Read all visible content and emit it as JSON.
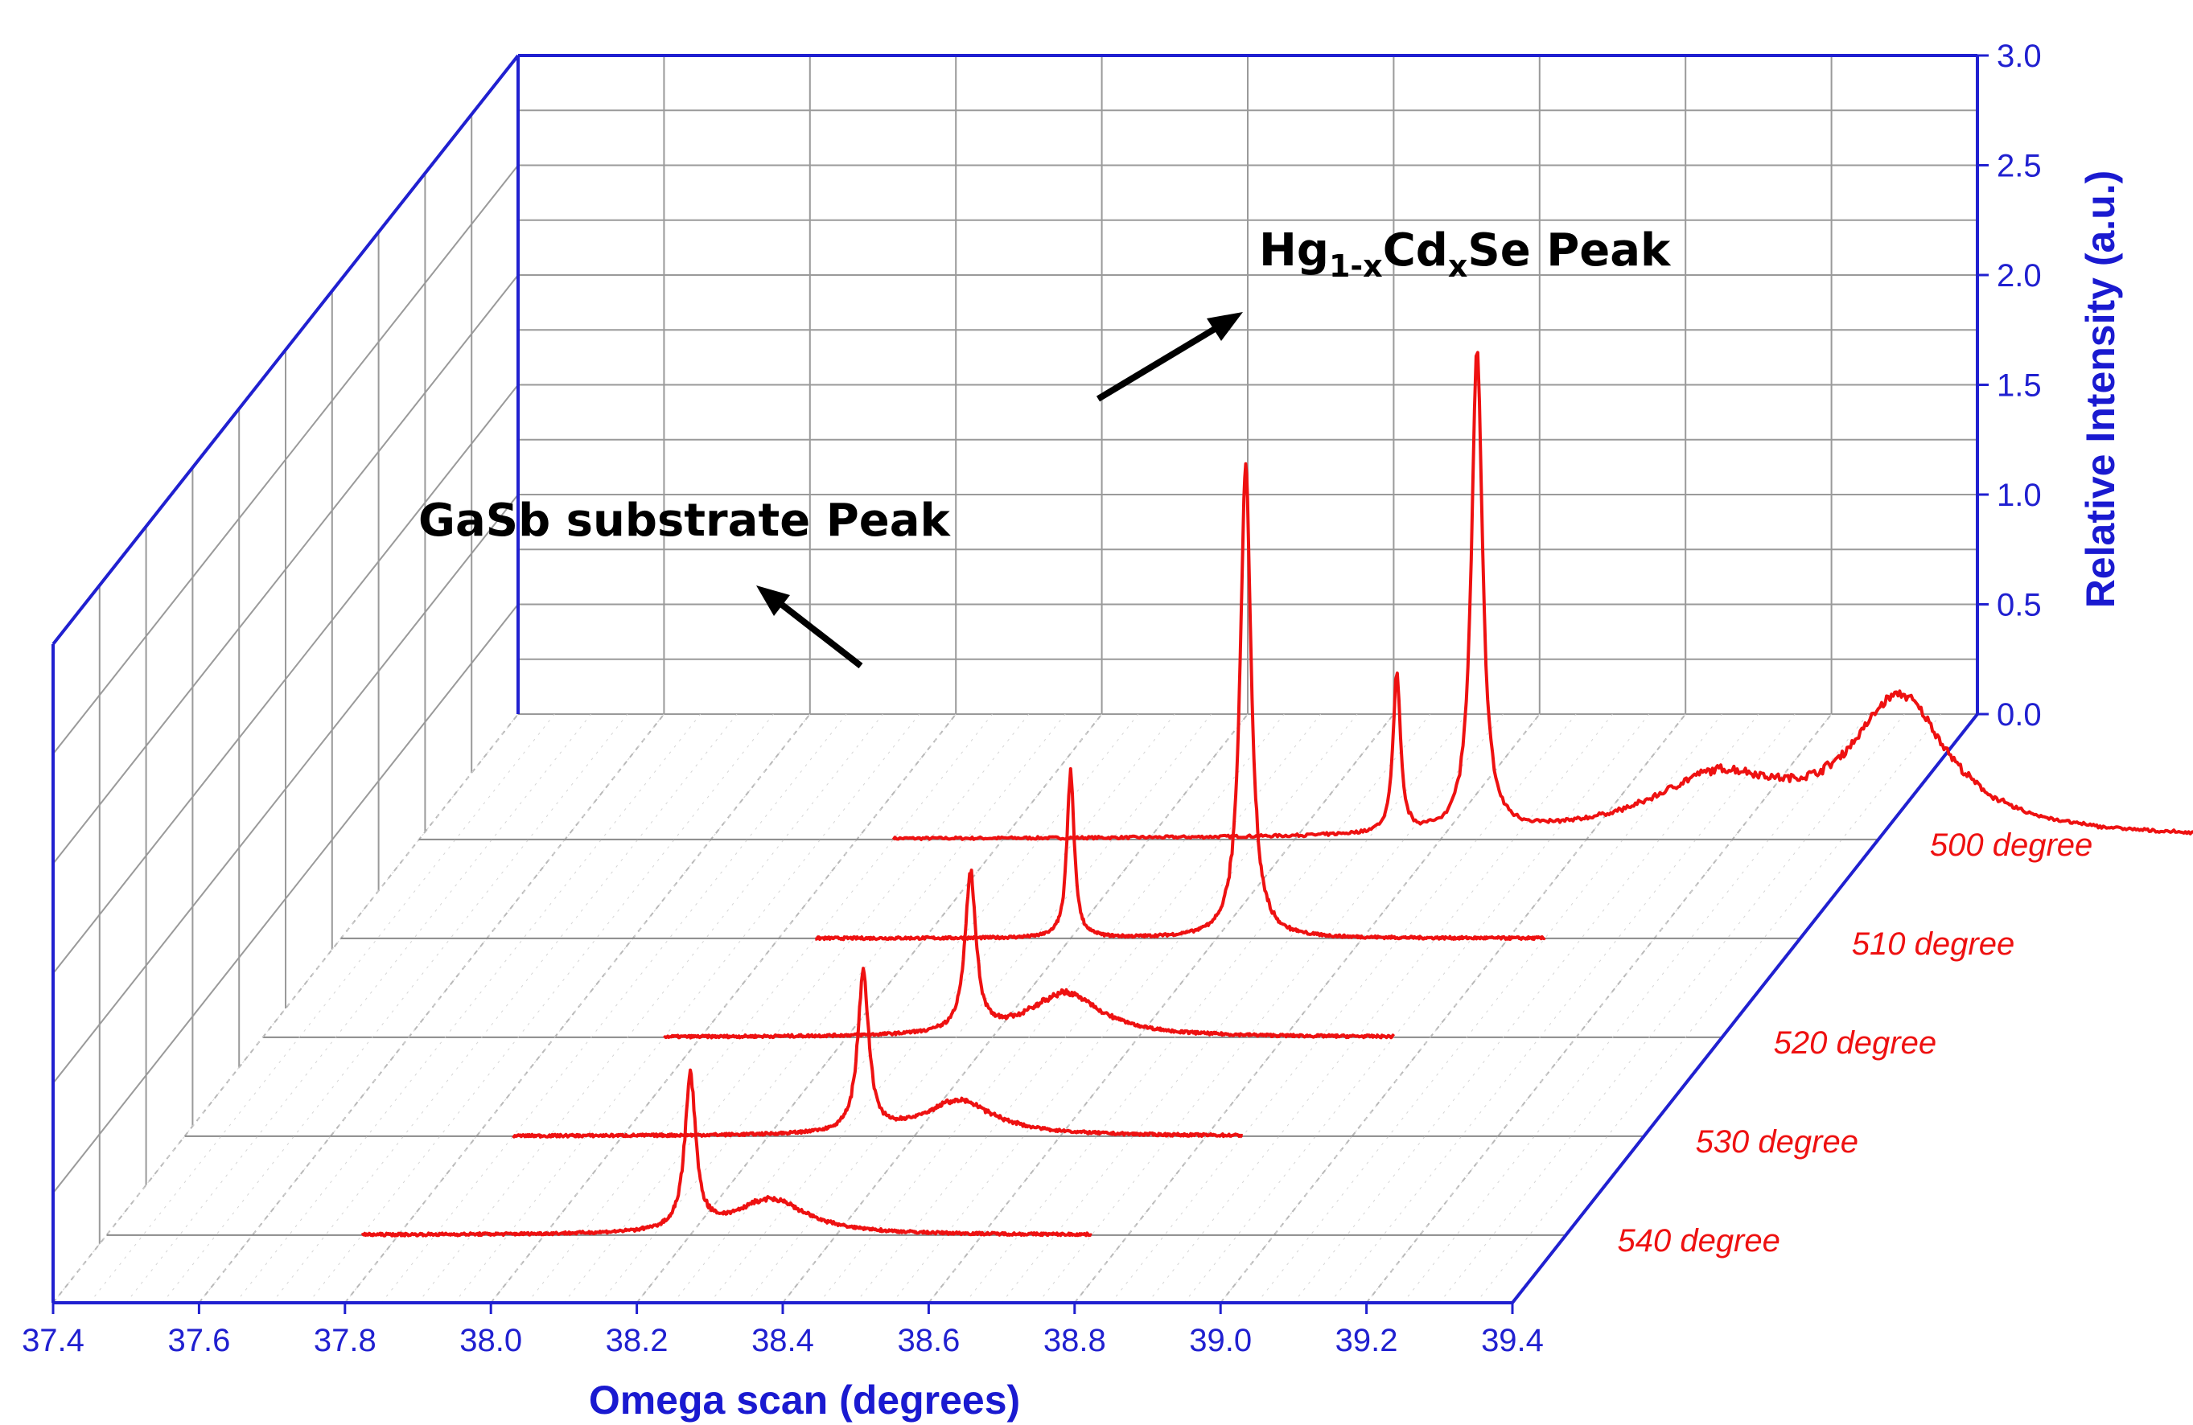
{
  "chart_data": {
    "type": "line",
    "style": "3d-waterfall",
    "xlabel": "Omega scan (degrees)",
    "zlabel": "Relative Intensity (a.u.)",
    "x_ticks": [
      "37.4",
      "37.6",
      "37.8",
      "38.0",
      "38.2",
      "38.4",
      "38.6",
      "38.8",
      "39.0",
      "39.2",
      "39.4"
    ],
    "z_ticks": [
      "0.0",
      "0.5",
      "1.0",
      "1.5",
      "2.0",
      "2.5",
      "3.0"
    ],
    "xlim": [
      37.4,
      39.4
    ],
    "zlim": [
      0,
      3.0
    ],
    "grid": true,
    "colors": {
      "axis": "#2020d0",
      "series": "#ee1111",
      "grid": "#9a9a9a",
      "annotation": "#000000"
    },
    "series": [
      {
        "name": "500 degree",
        "x_range": [
          38.05,
          39.85
        ],
        "peaks": [
          {
            "x": 38.74,
            "height": 0.72,
            "width": 0.006
          },
          {
            "x": 38.85,
            "height": 2.2,
            "width": 0.009
          },
          {
            "x": 39.18,
            "height": 0.26,
            "width": 0.11
          },
          {
            "x": 39.43,
            "height": 0.62,
            "width": 0.08
          }
        ]
      },
      {
        "name": "510 degree",
        "x_range": [
          38.05,
          39.05
        ],
        "peaks": [
          {
            "x": 38.4,
            "height": 0.75,
            "width": 0.006
          },
          {
            "x": 38.64,
            "height": 2.15,
            "width": 0.009
          }
        ]
      },
      {
        "name": "520 degree",
        "x_range": [
          37.95,
          38.95
        ],
        "peaks": [
          {
            "x": 38.37,
            "height": 0.72,
            "width": 0.009
          },
          {
            "x": 38.5,
            "height": 0.2,
            "width": 0.06
          }
        ]
      },
      {
        "name": "530 degree",
        "x_range": [
          37.85,
          38.85
        ],
        "peaks": [
          {
            "x": 38.33,
            "height": 0.72,
            "width": 0.009
          },
          {
            "x": 38.46,
            "height": 0.16,
            "width": 0.06
          }
        ]
      },
      {
        "name": "540 degree",
        "x_range": [
          37.75,
          38.75
        ],
        "peaks": [
          {
            "x": 38.2,
            "height": 0.7,
            "width": 0.009
          },
          {
            "x": 38.31,
            "height": 0.16,
            "width": 0.06
          }
        ]
      }
    ],
    "annotations": [
      {
        "id": "hgcdse",
        "parts": [
          "Hg",
          "1-x",
          "Cd",
          "x",
          "Se Peak"
        ]
      },
      {
        "id": "gasb",
        "text": "GaSb substrate Peak"
      }
    ]
  }
}
